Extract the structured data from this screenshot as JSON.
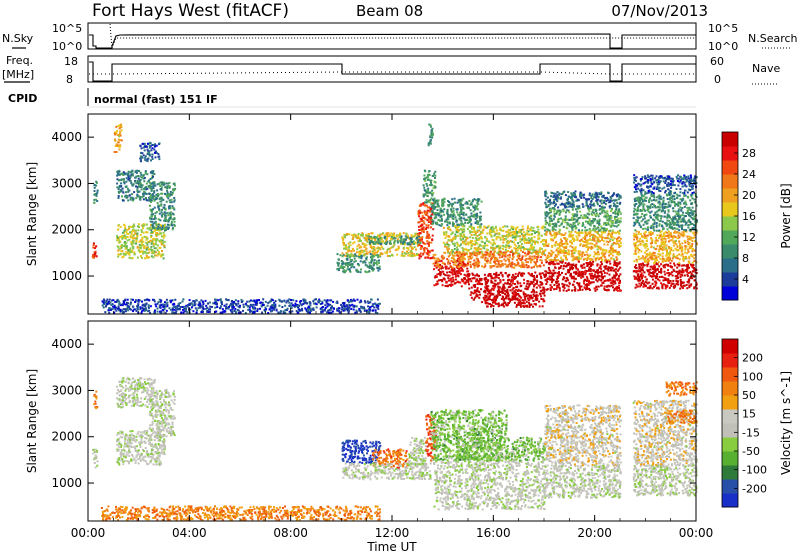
{
  "header": {
    "station": "Fort Hays West (fitACF)",
    "beam": "Beam 08",
    "date": "07/Nov/2013"
  },
  "noise_panel": {
    "left_label": "N.Sky",
    "right_label": "N.Search",
    "ticks": [
      "10^5",
      "10^0"
    ]
  },
  "freq_panel": {
    "left_label_1": "Freq.",
    "left_label_2": "[MHz]",
    "left_ticks": [
      "18",
      "8"
    ],
    "right_label": "Nave",
    "right_ticks": [
      "60",
      "0"
    ]
  },
  "cpid": {
    "label": "CPID",
    "value": "normal (fast) 151 IF"
  },
  "chart_data": [
    {
      "type": "heatmap",
      "title": "Power",
      "xlabel": "Time UT",
      "ylabel": "Slant Range [km]",
      "x_ticks": [
        "00:00",
        "04:00",
        "08:00",
        "12:00",
        "16:00",
        "20:00",
        "00:00"
      ],
      "y_ticks": [
        "1000",
        "2000",
        "3000",
        "4000"
      ],
      "xlim_hours": [
        0,
        24
      ],
      "ylim_km": [
        180,
        4500
      ],
      "colorbar": {
        "label": "Power [dB]",
        "ticks": [
          "28",
          "24",
          "20",
          "16",
          "12",
          "8",
          "4"
        ],
        "colors": [
          "#0000d8",
          "#1c3c9c",
          "#2a6e8a",
          "#3a8a6c",
          "#52a85a",
          "#8cc84a",
          "#e8c81c",
          "#f0a020",
          "#f07818",
          "#f04810",
          "#e81010",
          "#c80000"
        ]
      },
      "regions": [
        {
          "t0": 0.15,
          "t1": 0.35,
          "r0": 1350,
          "r1": 1750,
          "level": 0.85
        },
        {
          "t0": 0.2,
          "t1": 0.35,
          "r0": 2600,
          "r1": 3100,
          "level": 0.3
        },
        {
          "t0": 1.1,
          "t1": 2.6,
          "r0": 2650,
          "r1": 3300,
          "level": 0.25
        },
        {
          "t0": 1.1,
          "t1": 3.0,
          "r0": 1400,
          "r1": 2150,
          "level": 0.5
        },
        {
          "t0": 2.4,
          "t1": 3.4,
          "r0": 2000,
          "r1": 3050,
          "level": 0.3
        },
        {
          "t0": 2.0,
          "t1": 2.8,
          "r0": 3500,
          "r1": 3900,
          "level": 0.15
        },
        {
          "t0": 1.0,
          "t1": 1.3,
          "r0": 3700,
          "r1": 4300,
          "level": 0.6
        },
        {
          "t0": 0.5,
          "t1": 11.5,
          "r0": 220,
          "r1": 520,
          "level": 0.12
        },
        {
          "t0": 9.8,
          "t1": 11.5,
          "r0": 1100,
          "r1": 1500,
          "level": 0.3
        },
        {
          "t0": 10.0,
          "t1": 13.0,
          "r0": 1450,
          "r1": 1950,
          "level": 0.55
        },
        {
          "t0": 11.0,
          "t1": 13.1,
          "r0": 1700,
          "r1": 1880,
          "level": 0.3
        },
        {
          "t0": 13.0,
          "t1": 13.6,
          "r0": 1400,
          "r1": 2600,
          "level": 0.8
        },
        {
          "t0": 13.2,
          "t1": 13.7,
          "r0": 2600,
          "r1": 3300,
          "level": 0.35
        },
        {
          "t0": 13.4,
          "t1": 13.6,
          "r0": 3800,
          "r1": 4300,
          "level": 0.3
        },
        {
          "t0": 13.5,
          "t1": 15.5,
          "r0": 2100,
          "r1": 2700,
          "level": 0.3
        },
        {
          "t0": 14.0,
          "t1": 18.0,
          "r0": 1500,
          "r1": 2100,
          "level": 0.5
        },
        {
          "t0": 13.6,
          "t1": 15.0,
          "r0": 800,
          "r1": 1350,
          "level": 0.95
        },
        {
          "t0": 15.0,
          "t1": 18.0,
          "r0": 500,
          "r1": 1100,
          "level": 1.0
        },
        {
          "t0": 15.5,
          "t1": 18.0,
          "r0": 350,
          "r1": 520,
          "level": 0.98
        },
        {
          "t0": 13.6,
          "t1": 18.0,
          "r0": 1200,
          "r1": 1550,
          "level": 0.7
        },
        {
          "t0": 18.0,
          "t1": 21.0,
          "r0": 700,
          "r1": 1350,
          "level": 0.98
        },
        {
          "t0": 18.0,
          "t1": 21.0,
          "r0": 1350,
          "r1": 2000,
          "level": 0.6
        },
        {
          "t0": 18.0,
          "t1": 21.0,
          "r0": 2000,
          "r1": 2500,
          "level": 0.35
        },
        {
          "t0": 18.0,
          "t1": 21.0,
          "r0": 2500,
          "r1": 2850,
          "level": 0.2
        },
        {
          "t0": 21.5,
          "t1": 24.0,
          "r0": 750,
          "r1": 1300,
          "level": 0.98
        },
        {
          "t0": 21.5,
          "t1": 24.0,
          "r0": 1300,
          "r1": 2000,
          "level": 0.6
        },
        {
          "t0": 21.5,
          "t1": 24.0,
          "r0": 2000,
          "r1": 2800,
          "level": 0.3
        },
        {
          "t0": 21.5,
          "t1": 24.0,
          "r0": 2800,
          "r1": 3200,
          "level": 0.15
        }
      ]
    },
    {
      "type": "heatmap",
      "title": "Velocity",
      "xlabel": "Time UT",
      "ylabel": "Slant Range [km]",
      "x_ticks": [
        "00:00",
        "04:00",
        "08:00",
        "12:00",
        "16:00",
        "20:00",
        "00:00"
      ],
      "y_ticks": [
        "1000",
        "2000",
        "3000",
        "4000"
      ],
      "xlim_hours": [
        0,
        24
      ],
      "ylim_km": [
        180,
        4500
      ],
      "colorbar": {
        "label": "Velocity [m s^-1]",
        "ticks": [
          "200",
          "100",
          "50",
          "15",
          "-15",
          "-50",
          "-100",
          "-200"
        ],
        "colors": [
          "#1830c8",
          "#2850a8",
          "#2e7a3a",
          "#58b030",
          "#88cc40",
          "#c0c0b8",
          "#c8c8c0",
          "#f0a010",
          "#f08010",
          "#f05810",
          "#e82010",
          "#d00000"
        ]
      },
      "regions": [
        {
          "t0": 0.15,
          "t1": 0.35,
          "r0": 1350,
          "r1": 1750,
          "level": 0.45
        },
        {
          "t0": 0.2,
          "t1": 0.35,
          "r0": 2600,
          "r1": 3000,
          "level": 0.75
        },
        {
          "t0": 1.1,
          "t1": 2.6,
          "r0": 2650,
          "r1": 3300,
          "level": 0.47
        },
        {
          "t0": 1.1,
          "t1": 3.0,
          "r0": 1400,
          "r1": 2150,
          "level": 0.47
        },
        {
          "t0": 2.4,
          "t1": 3.4,
          "r0": 2000,
          "r1": 3050,
          "level": 0.47
        },
        {
          "t0": 0.5,
          "t1": 11.5,
          "r0": 220,
          "r1": 520,
          "level": 0.7
        },
        {
          "t0": 10.0,
          "t1": 11.5,
          "r0": 1450,
          "r1": 1950,
          "level": 0.05
        },
        {
          "t0": 11.2,
          "t1": 12.6,
          "r0": 1350,
          "r1": 1750,
          "level": 0.75
        },
        {
          "t0": 12.6,
          "t1": 13.3,
          "r0": 1400,
          "r1": 2000,
          "level": 0.45
        },
        {
          "t0": 13.3,
          "t1": 13.7,
          "r0": 1500,
          "r1": 2500,
          "level": 0.8
        },
        {
          "t0": 13.5,
          "t1": 16.5,
          "r0": 1500,
          "r1": 2600,
          "level": 0.35
        },
        {
          "t0": 10.0,
          "t1": 13.5,
          "r0": 1100,
          "r1": 1450,
          "level": 0.47
        },
        {
          "t0": 13.6,
          "t1": 18.0,
          "r0": 450,
          "r1": 1500,
          "level": 0.47
        },
        {
          "t0": 14.5,
          "t1": 18.0,
          "r0": 1500,
          "r1": 2000,
          "level": 0.35
        },
        {
          "t0": 18.0,
          "t1": 21.0,
          "r0": 700,
          "r1": 1400,
          "level": 0.47
        },
        {
          "t0": 18.0,
          "t1": 21.0,
          "r0": 1400,
          "r1": 2700,
          "level": 0.52
        },
        {
          "t0": 21.5,
          "t1": 24.0,
          "r0": 750,
          "r1": 1400,
          "level": 0.47
        },
        {
          "t0": 21.5,
          "t1": 24.0,
          "r0": 1400,
          "r1": 2800,
          "level": 0.52
        },
        {
          "t0": 22.8,
          "t1": 24.0,
          "r0": 2300,
          "r1": 2600,
          "level": 0.72
        },
        {
          "t0": 22.8,
          "t1": 24.0,
          "r0": 2900,
          "r1": 3200,
          "level": 0.72
        }
      ]
    }
  ]
}
